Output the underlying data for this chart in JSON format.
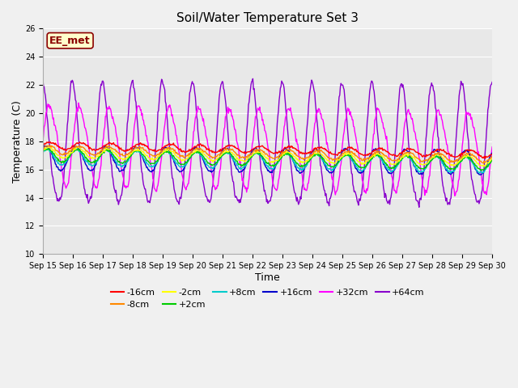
{
  "title": "Soil/Water Temperature Set 3",
  "xlabel": "Time",
  "ylabel": "Temperature (C)",
  "ylim": [
    10,
    26
  ],
  "annotation": "EE_met",
  "bg_color": "#e8e8e8",
  "fig_bg_color": "#f0f0f0",
  "series": {
    "-16cm": {
      "color": "#ff0000",
      "base": 17.7,
      "amp": 0.25,
      "phase": 0.0,
      "trend": -0.04
    },
    "-8cm": {
      "color": "#ff8800",
      "base": 17.4,
      "amp": 0.3,
      "phase": 0.1,
      "trend": -0.04
    },
    "-2cm": {
      "color": "#ffff00",
      "base": 17.2,
      "amp": 0.35,
      "phase": 0.15,
      "trend": -0.04
    },
    "+2cm": {
      "color": "#00cc00",
      "base": 17.0,
      "amp": 0.45,
      "phase": 0.2,
      "trend": -0.04
    },
    "+8cm": {
      "color": "#00cccc",
      "base": 16.9,
      "amp": 0.55,
      "phase": 0.25,
      "trend": -0.04
    },
    "+16cm": {
      "color": "#0000cc",
      "base": 16.8,
      "amp": 0.85,
      "phase": 0.3,
      "trend": -0.02
    },
    "+32cm": {
      "color": "#ff00ff",
      "base": 17.8,
      "amp": 2.8,
      "phase": 0.0,
      "trend": -0.03
    },
    "+64cm": {
      "color": "#8800cc",
      "base": 17.5,
      "amp": 4.2,
      "phase": 0.5,
      "trend": -0.01
    }
  },
  "xtick_labels": [
    "Sep 15",
    "Sep 16",
    "Sep 17",
    "Sep 18",
    "Sep 19",
    "Sep 20",
    "Sep 21",
    "Sep 22",
    "Sep 23",
    "Sep 24",
    "Sep 25",
    "Sep 26",
    "Sep 27",
    "Sep 28",
    "Sep 29",
    "Sep 30"
  ],
  "ytick_values": [
    10,
    12,
    14,
    16,
    18,
    20,
    22,
    24,
    26
  ],
  "legend_order": [
    "-16cm",
    "-8cm",
    "-2cm",
    "+2cm",
    "+8cm",
    "+16cm",
    "+32cm",
    "+64cm"
  ],
  "draw_order": [
    "+64cm",
    "+32cm",
    "+16cm",
    "+8cm",
    "+2cm",
    "-2cm",
    "-8cm",
    "-16cm"
  ],
  "n_days": 15,
  "pts_per_day": 48,
  "osc_period_days": 1.0,
  "title_fontsize": 11,
  "axis_label_fontsize": 9,
  "tick_fontsize": 7,
  "legend_fontsize": 8
}
